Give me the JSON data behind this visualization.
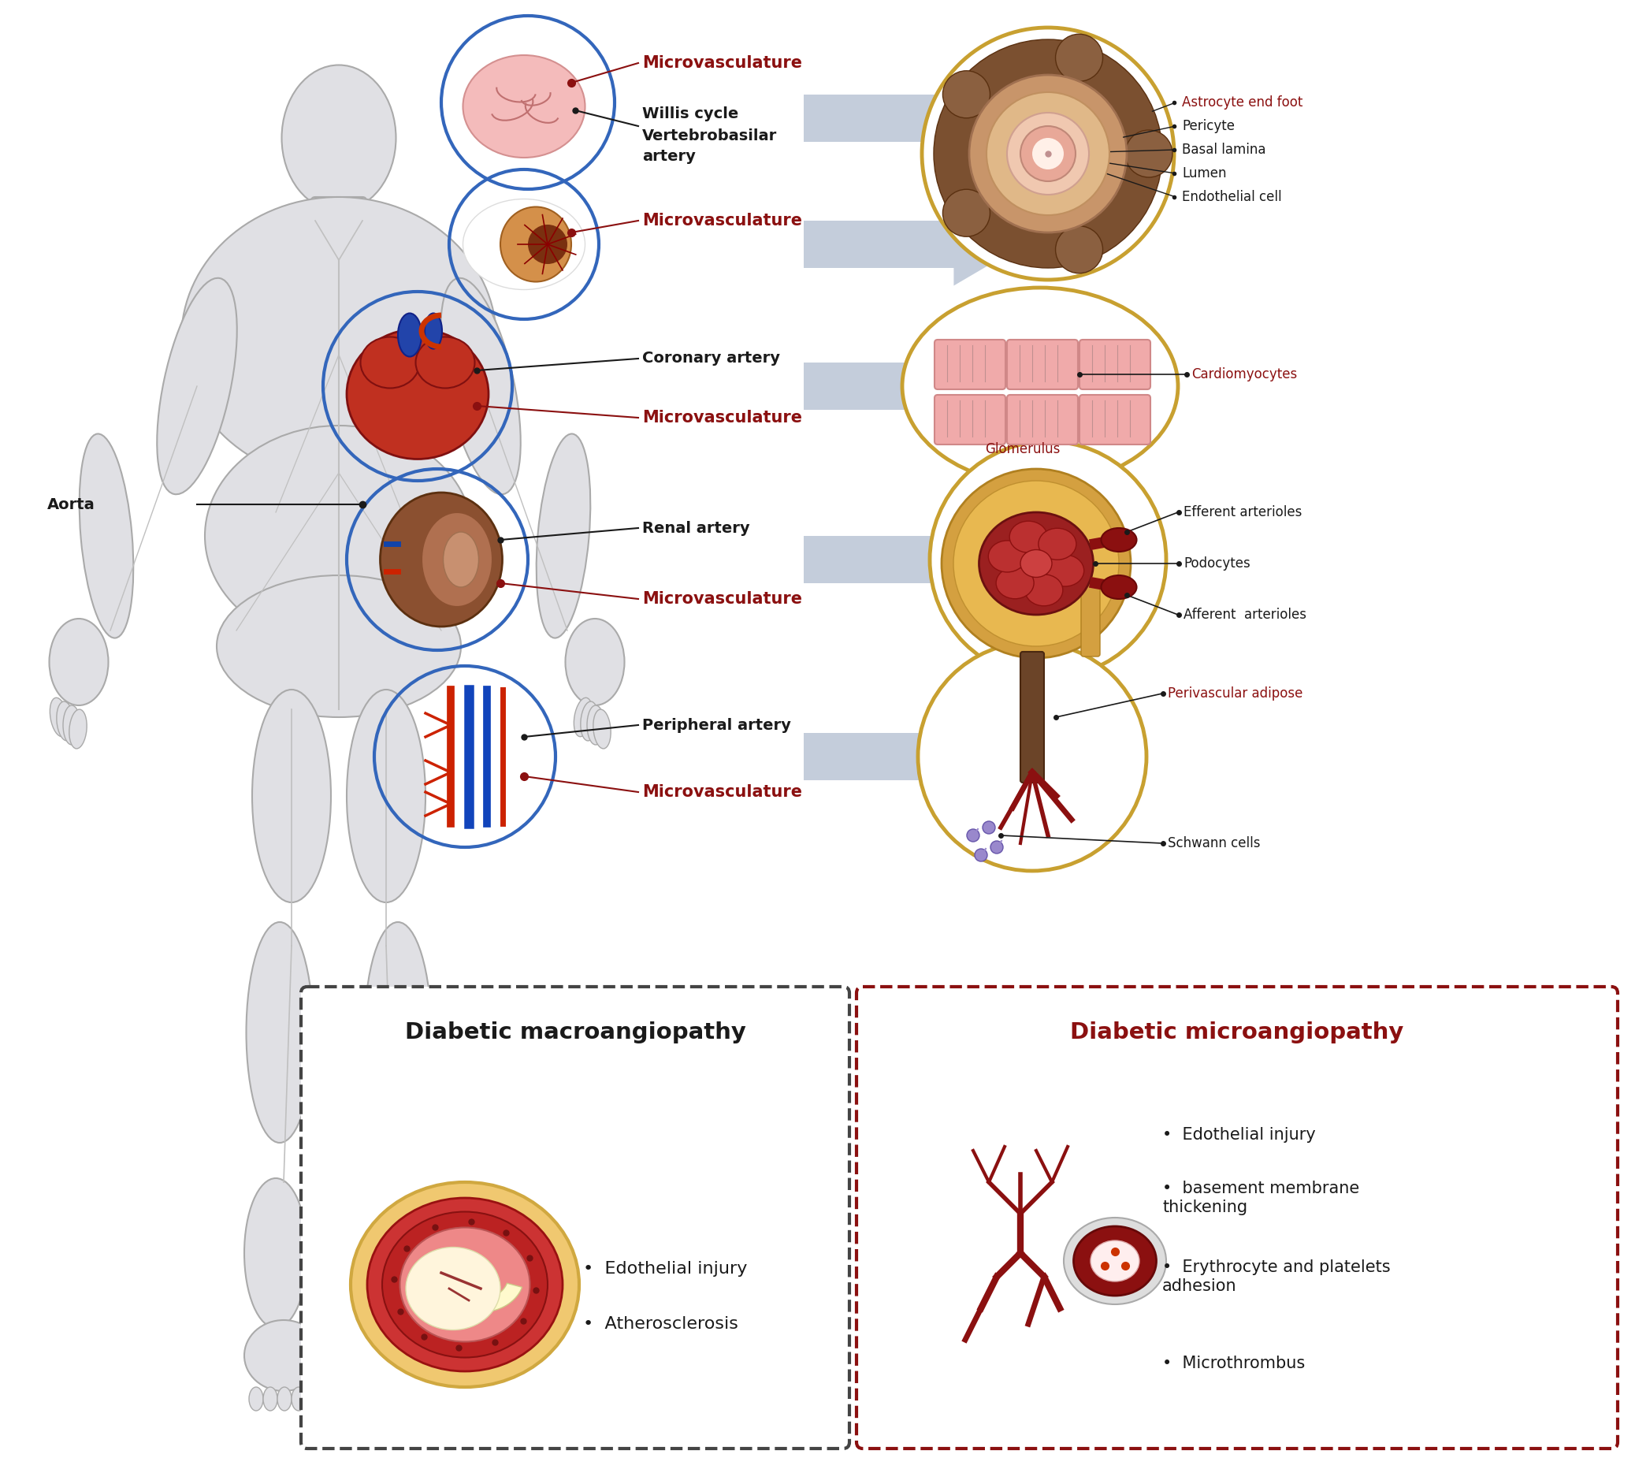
{
  "bg_color": "#ffffff",
  "dark_red": "#8B0000",
  "red_label": "#8B1010",
  "black": "#1a1a1a",
  "blue_circle": "#3366BB",
  "gold_circle": "#C8A030",
  "arrow_color": "#B0BDD0",
  "box1_border": "#666666",
  "box2_border": "#8B1A1A",
  "left_box_title": "Diabetic macroangiopathy",
  "right_box_title": "Diabetic microangiopathy",
  "left_box_bullets": [
    "Edothelial injury",
    "Atherosclerosis"
  ],
  "right_box_bullets_line1": "Edothelial injury",
  "right_box_bullets_line2": "basement membrane\nthickening",
  "right_box_bullets_line3": "Erythrocyte and platelets\nadhesion",
  "right_box_bullets_line4": "Microthrombus",
  "vessel_labels": [
    "Astrocyte end foot",
    "Pericyte",
    "Basal lamina",
    "Lumen",
    "Endothelial cell"
  ],
  "kidney_labels": [
    "Glomerulus",
    "Efferent arterioles",
    "Podocytes",
    "Afferent  arterioles"
  ],
  "heart_label": "Cardiomyocytes",
  "peripheral_labels": [
    "Perivascular adipose",
    "Schwann cells"
  ]
}
